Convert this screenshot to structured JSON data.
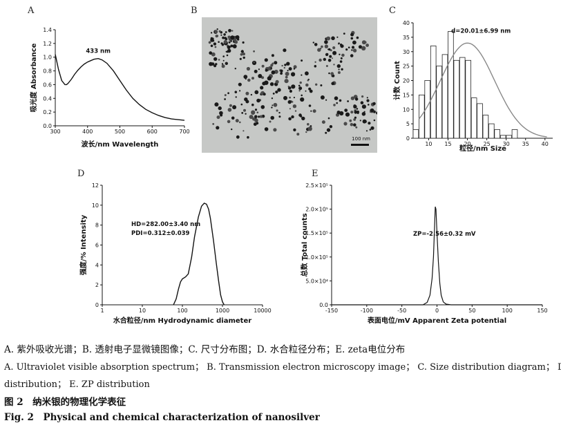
{
  "panels": {
    "a_letter": "A",
    "b_letter": "B",
    "c_letter": "C",
    "d_letter": "D",
    "e_letter": "E"
  },
  "tem": {
    "scale_label": "100 nm"
  },
  "captions": {
    "line1": "A. 紫外吸收光谱；B. 透射电子显微镜图像；C. 尺寸分布图；D. 水合粒径分布；E. zeta电位分布",
    "line2": "A. Ultraviolet visible absorption spectrum； B. Transmission electron microscopy image； C. Size distribution diagram； D.",
    "line3": "distribution； E. ZP distribution",
    "fig_cn": "图 2　纳米银的物理化学表征",
    "fig_en": "Fig. 2　Physical and chemical characterization of nanosilver"
  },
  "chart_data": [
    {
      "id": "A",
      "type": "line",
      "xlabel": "波长/nm Wavelength",
      "ylabel": "吸光度 Absorbance",
      "xlim": [
        300,
        700
      ],
      "ylim": [
        0,
        1.4
      ],
      "xticks": [
        "300",
        "400",
        "500",
        "600",
        "700"
      ],
      "yticks": [
        "0.0",
        "0.2",
        "0.4",
        "0.6",
        "0.8",
        "1.0",
        "1.2",
        "1.4"
      ],
      "annotation": "433 nm",
      "x": [
        300,
        310,
        320,
        330,
        335,
        340,
        350,
        360,
        370,
        380,
        390,
        400,
        410,
        420,
        433,
        445,
        460,
        480,
        500,
        520,
        540,
        560,
        580,
        600,
        620,
        640,
        660,
        680,
        700
      ],
      "y": [
        1.04,
        0.82,
        0.66,
        0.6,
        0.6,
        0.62,
        0.68,
        0.75,
        0.81,
        0.86,
        0.9,
        0.93,
        0.95,
        0.97,
        0.98,
        0.96,
        0.91,
        0.8,
        0.66,
        0.52,
        0.4,
        0.31,
        0.24,
        0.19,
        0.15,
        0.12,
        0.1,
        0.09,
        0.08
      ]
    },
    {
      "id": "C",
      "type": "bar",
      "xlabel": "粒径/nm Size",
      "ylabel": "计数 Count",
      "xlim": [
        6,
        42
      ],
      "ylim": [
        0,
        40
      ],
      "xticks": [
        "10",
        "15",
        "20",
        "25",
        "30",
        "35",
        "40"
      ],
      "yticks": [
        "0",
        "5",
        "10",
        "15",
        "20",
        "25",
        "30",
        "35",
        "40"
      ],
      "annotation": "d=20.01±6.99 nm",
      "bin_start": 6,
      "bin_width": 1.5,
      "values": [
        3,
        15,
        20,
        32,
        25,
        29,
        37,
        27,
        28,
        27,
        14,
        12,
        8,
        5,
        3,
        1,
        1,
        3
      ],
      "fit_mean": 20.01,
      "fit_sd": 6.99,
      "fit_peak": 33
    },
    {
      "id": "D",
      "type": "line",
      "xlabel": "水合粒径/nm  Hydrodynamic diameter",
      "ylabel": "强度/% Intensity",
      "xscale": "log",
      "xlim": [
        1,
        10000
      ],
      "ylim": [
        0,
        12
      ],
      "xticks": [
        "1",
        "10",
        "100",
        "1000",
        "10000"
      ],
      "yticks": [
        "0",
        "2",
        "4",
        "6",
        "8",
        "10",
        "12"
      ],
      "annotation_1": "HD=282.00±3.40 nm",
      "annotation_2": "PDI=0.312±0.039",
      "x": [
        60,
        70,
        80,
        90,
        100,
        120,
        140,
        170,
        200,
        250,
        300,
        350,
        400,
        450,
        500,
        600,
        700,
        800,
        900,
        1000,
        1100
      ],
      "y": [
        0,
        0.6,
        1.6,
        2.3,
        2.6,
        2.8,
        3.1,
        4.8,
        6.8,
        8.8,
        9.9,
        10.2,
        10.1,
        9.6,
        8.7,
        6.4,
        4.2,
        2.4,
        1.0,
        0.3,
        0
      ]
    },
    {
      "id": "E",
      "type": "line",
      "xlabel": "表面电位/mV  Apparent Zeta potential",
      "ylabel": "总数 Total counts",
      "xlim": [
        -150,
        150
      ],
      "ylim": [
        0,
        250000
      ],
      "xticks": [
        "-150",
        "-100",
        "-50",
        "0",
        "50",
        "100",
        "150"
      ],
      "yticks": [
        "0.0",
        "5.0×10⁴",
        "1.0×10⁵",
        "1.5×10⁵",
        "2.0×10⁵",
        "2.5×10⁵"
      ],
      "annotation": "ZP=-2.56±0.32 mV",
      "x": [
        -150,
        -20,
        -14,
        -10,
        -7,
        -5,
        -3.5,
        -2.5,
        -1.5,
        0,
        2,
        4,
        6,
        9,
        13,
        20,
        150
      ],
      "y": [
        0,
        0,
        5000,
        20000,
        55000,
        100000,
        160000,
        205000,
        200000,
        150000,
        90000,
        45000,
        20000,
        6000,
        1500,
        0,
        0
      ]
    }
  ]
}
